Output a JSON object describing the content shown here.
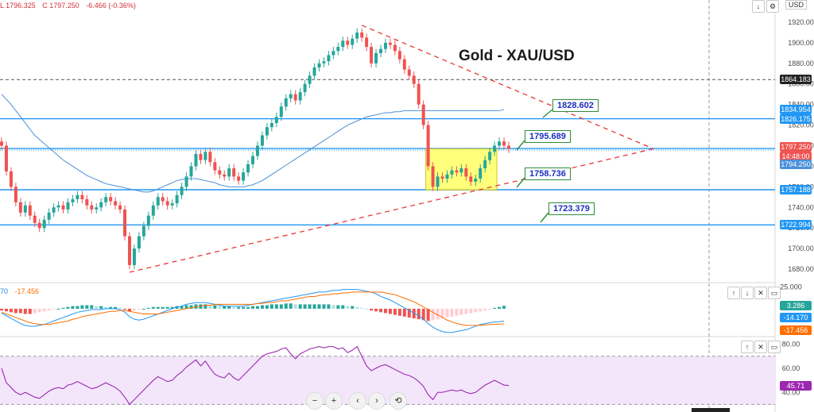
{
  "header": {
    "low": "L 1796.325",
    "close": "C 1797.250",
    "change": "-6.466 (-0.36%)"
  },
  "title": "Gold - XAU/USD",
  "currency_button": "USD",
  "colors": {
    "bull": "#26a69a",
    "bear": "#ef5350",
    "resistance": "#2196f3",
    "trend": "#e53935",
    "ma": "#4a90d9",
    "box": "#ffff66",
    "rsi_band": "#f3e6fb",
    "rsi_line": "#9c27b0"
  },
  "price_axis": {
    "ticks": [
      "1920.000",
      "1900.000",
      "1880.000",
      "1860.000",
      "1840.000",
      "1820.000",
      "1800.000",
      "1780.000",
      "1760.000",
      "1740.000",
      "1720.000",
      "1700.000",
      "1680.000"
    ]
  },
  "price_labels": [
    {
      "text": "1864.183",
      "color": "#222222"
    },
    {
      "text": "1834.954",
      "color": "#2196f3"
    },
    {
      "text": "1826.175",
      "color": "#2196f3"
    },
    {
      "text": "1797.250",
      "color": "#ef5350"
    },
    {
      "text": "14:48:00",
      "color": "#ef5350"
    },
    {
      "text": "1794.250",
      "color": "#4a90d9"
    },
    {
      "text": "1757.188",
      "color": "#2196f3"
    },
    {
      "text": "1722.994",
      "color": "#2196f3"
    }
  ],
  "callouts": [
    "1828.602",
    "1795.689",
    "1758.736",
    "1723.379"
  ],
  "macd": {
    "label_left": "70",
    "label_value": "-17.456",
    "ticks": [
      "25.000"
    ],
    "values": [
      "3.286",
      "-14.170",
      "-17.456"
    ]
  },
  "rsi": {
    "ticks": [
      "80.00",
      "60.00",
      "40.00"
    ],
    "value": "45.71"
  },
  "nav": {
    "minus": "−",
    "plus": "+",
    "left": "‹",
    "right": "›",
    "reset": "⟲"
  },
  "chart_data": {
    "type": "candlestick",
    "title": "Gold - XAU/USD",
    "ylim": [
      1670,
      1930
    ],
    "horizontal_levels": [
      1864.183,
      1826.175,
      1797.25,
      1757.188,
      1722.994
    ],
    "callout_levels": [
      1828.602,
      1795.689,
      1758.736,
      1723.379
    ],
    "consolidation_box": {
      "from_index": 90,
      "to_index": 104,
      "low": 1757,
      "high": 1797
    },
    "trendlines": [
      {
        "name": "upper",
        "from": [
          76,
          1917
        ],
        "to": [
          136,
          1797
        ]
      },
      {
        "name": "lower",
        "from": [
          27,
          1677
        ],
        "to": [
          136,
          1797
        ]
      }
    ],
    "close": [
      1800,
      1775,
      1760,
      1745,
      1735,
      1742,
      1732,
      1725,
      1720,
      1728,
      1735,
      1740,
      1742,
      1738,
      1745,
      1748,
      1752,
      1748,
      1742,
      1738,
      1740,
      1745,
      1750,
      1746,
      1742,
      1738,
      1712,
      1684,
      1700,
      1712,
      1722,
      1732,
      1742,
      1750,
      1746,
      1742,
      1744,
      1752,
      1760,
      1770,
      1780,
      1792,
      1786,
      1794,
      1784,
      1776,
      1772,
      1770,
      1778,
      1770,
      1766,
      1774,
      1782,
      1790,
      1800,
      1810,
      1818,
      1822,
      1828,
      1838,
      1846,
      1850,
      1844,
      1852,
      1860,
      1868,
      1876,
      1880,
      1882,
      1888,
      1892,
      1896,
      1902,
      1898,
      1904,
      1910,
      1905,
      1896,
      1880,
      1890,
      1894,
      1900,
      1898,
      1892,
      1884,
      1874,
      1868,
      1860,
      1840,
      1820,
      1780,
      1760,
      1770,
      1768,
      1772,
      1776,
      1774,
      1778,
      1770,
      1765,
      1768,
      1778,
      1786,
      1794,
      1800,
      1804,
      1800,
      1797
    ],
    "ma": [
      1850,
      1845,
      1840,
      1834,
      1828,
      1822,
      1816,
      1810,
      1806,
      1802,
      1798,
      1794,
      1790,
      1786,
      1783,
      1780,
      1777,
      1774,
      1771,
      1769,
      1767,
      1765,
      1763,
      1762,
      1761,
      1760,
      1759,
      1758,
      1757,
      1756,
      1755,
      1755,
      1756,
      1758,
      1760,
      1762,
      1764,
      1766,
      1767,
      1768,
      1768,
      1768,
      1767,
      1766,
      1765,
      1764,
      1762,
      1761,
      1760,
      1760,
      1760,
      1760,
      1761,
      1762,
      1764,
      1766,
      1769,
      1772,
      1775,
      1778,
      1781,
      1784,
      1787,
      1790,
      1793,
      1796,
      1799,
      1802,
      1805,
      1808,
      1811,
      1814,
      1817,
      1820,
      1822,
      1824,
      1826,
      1828,
      1829,
      1830,
      1831,
      1832,
      1832,
      1833,
      1833,
      1834,
      1834,
      1834,
      1834,
      1834,
      1834,
      1834,
      1834,
      1834,
      1834,
      1834,
      1834,
      1834,
      1834,
      1834,
      1834,
      1834,
      1834,
      1834,
      1834,
      1834,
      1834.954
    ],
    "macd_hist": [
      -2,
      -3,
      -4,
      -5,
      -5,
      -6,
      -6,
      -5,
      -4,
      -3,
      -2,
      -1,
      0,
      1,
      2,
      3,
      3,
      4,
      4,
      4,
      3,
      3,
      2,
      2,
      2,
      1,
      -1,
      -3,
      -2,
      -1,
      0,
      1,
      2,
      2,
      2,
      2,
      2,
      3,
      3,
      4,
      4,
      5,
      5,
      5,
      4,
      4,
      3,
      3,
      3,
      2,
      2,
      2,
      2,
      3,
      3,
      4,
      4,
      5,
      5,
      5,
      6,
      6,
      5,
      5,
      5,
      5,
      5,
      5,
      5,
      5,
      4,
      4,
      4,
      3,
      3,
      2,
      1,
      0,
      -2,
      -3,
      -4,
      -5,
      -6,
      -7,
      -8,
      -9,
      -10,
      -11,
      -12,
      -13,
      -14,
      -13,
      -12,
      -11,
      -10,
      -9,
      -8,
      -7,
      -6,
      -5,
      -4,
      -3,
      -2,
      -1,
      1,
      2,
      3.286
    ],
    "macd_line": [
      -5,
      -8,
      -11,
      -14,
      -17,
      -19,
      -20,
      -20,
      -19,
      -18,
      -16,
      -14,
      -12,
      -10,
      -8,
      -6,
      -4,
      -3,
      -2,
      -1,
      -1,
      -1,
      0,
      0,
      0,
      -1,
      -4,
      -9,
      -12,
      -13,
      -12,
      -10,
      -8,
      -6,
      -4,
      -2,
      0,
      2,
      3,
      5,
      6,
      7,
      7,
      7,
      6,
      5,
      4,
      3,
      3,
      3,
      3,
      3,
      4,
      5,
      6,
      7,
      8,
      9,
      10,
      11,
      12,
      13,
      14,
      15,
      16,
      17,
      18,
      19,
      19,
      20,
      21,
      21,
      22,
      22,
      22,
      22,
      21,
      20,
      19,
      17,
      14,
      12,
      10,
      7,
      4,
      1,
      -2,
      -5,
      -8,
      -12,
      -17,
      -21,
      -24,
      -26,
      -27,
      -27,
      -26,
      -25,
      -24,
      -22,
      -20,
      -18,
      -17,
      -16,
      -15,
      -14.8,
      -14.17
    ],
    "signal_line": [
      -4,
      -6,
      -8,
      -10,
      -12,
      -14,
      -16,
      -17,
      -18,
      -18,
      -18,
      -17,
      -16,
      -15,
      -14,
      -12,
      -11,
      -9,
      -8,
      -7,
      -6,
      -5,
      -4,
      -3,
      -3,
      -2,
      -2,
      -3,
      -4,
      -5,
      -6,
      -6,
      -6,
      -6,
      -5,
      -4,
      -3,
      -2,
      -1,
      0,
      1,
      2,
      3,
      4,
      4,
      5,
      5,
      5,
      5,
      5,
      5,
      5,
      5,
      5,
      6,
      6,
      7,
      7,
      8,
      9,
      9,
      10,
      11,
      12,
      13,
      14,
      14,
      15,
      16,
      16,
      17,
      17,
      18,
      18,
      19,
      19,
      19,
      19,
      19,
      19,
      19,
      18,
      17,
      16,
      14,
      12,
      10,
      8,
      5,
      2,
      -1,
      -4,
      -7,
      -10,
      -13,
      -15,
      -17,
      -18,
      -19,
      -19,
      -19,
      -19,
      -18.5,
      -18,
      -17.8,
      -17.6,
      -17.456
    ],
    "rsi": [
      60,
      48,
      44,
      40,
      38,
      40,
      38,
      36,
      35,
      38,
      41,
      43,
      44,
      43,
      46,
      47,
      49,
      47,
      45,
      43,
      44,
      46,
      48,
      46,
      44,
      41,
      36,
      30,
      34,
      38,
      42,
      46,
      50,
      53,
      51,
      49,
      50,
      54,
      57,
      61,
      64,
      67,
      62,
      66,
      60,
      55,
      53,
      52,
      56,
      52,
      50,
      54,
      58,
      62,
      66,
      70,
      72,
      73,
      74,
      76,
      77,
      72,
      68,
      72,
      74,
      76,
      77,
      78,
      77,
      78,
      78,
      76,
      77,
      73,
      75,
      78,
      70,
      62,
      58,
      60,
      62,
      63,
      61,
      59,
      57,
      55,
      54,
      52,
      49,
      45,
      38,
      34,
      40,
      40,
      41,
      42,
      41,
      42,
      40,
      39,
      40,
      43,
      46,
      48,
      50,
      48,
      46,
      45.71
    ],
    "rsi_range": [
      25,
      85
    ],
    "rsi_band": [
      30,
      70
    ]
  }
}
